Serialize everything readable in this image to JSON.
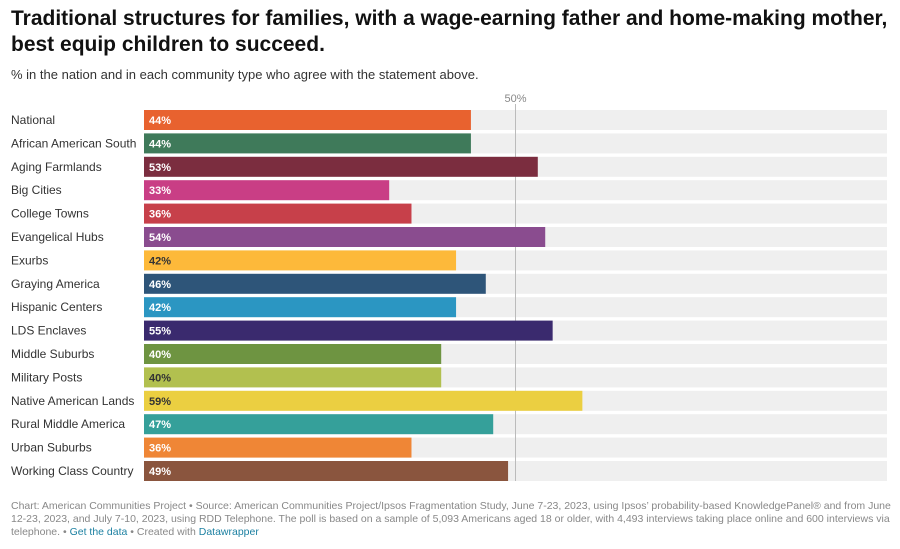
{
  "title": "Traditional structures for families, with a wage-earning father and home-making mother, best equip children to succeed.",
  "subtitle": "% in the nation and in each community type who agree with the statement above.",
  "chart_data": {
    "type": "bar",
    "orientation": "horizontal",
    "xlim": [
      0,
      100
    ],
    "value_suffix": "%",
    "reference_line": {
      "value": 50,
      "label": "50%"
    },
    "categories": [
      "National",
      "African American South",
      "Aging Farmlands",
      "Big Cities",
      "College Towns",
      "Evangelical Hubs",
      "Exurbs",
      "Graying America",
      "Hispanic Centers",
      "LDS Enclaves",
      "Middle Suburbs",
      "Military Posts",
      "Native American Lands",
      "Rural Middle America",
      "Urban Suburbs",
      "Working Class Country"
    ],
    "values": [
      44,
      44,
      53,
      33,
      36,
      54,
      42,
      46,
      42,
      55,
      40,
      40,
      59,
      47,
      36,
      49
    ],
    "colors": [
      "#e8622f",
      "#3f7a5a",
      "#7b2d3f",
      "#c93e85",
      "#c7404a",
      "#8a4c8f",
      "#fdb93a",
      "#2e5579",
      "#2b96c2",
      "#3a2a6e",
      "#6e9441",
      "#b2c04f",
      "#ebcf41",
      "#35a09a",
      "#ef8636",
      "#8a553e"
    ],
    "label_colors": [
      "#ffffff",
      "#ffffff",
      "#ffffff",
      "#ffffff",
      "#ffffff",
      "#ffffff",
      "#333333",
      "#ffffff",
      "#ffffff",
      "#ffffff",
      "#ffffff",
      "#333333",
      "#333333",
      "#ffffff",
      "#ffffff",
      "#ffffff"
    ],
    "background_color": "#efefef"
  },
  "footer": {
    "text": "Chart: American Communities Project • Source: American Communities Project/Ipsos Fragmentation Study, June 7-23, 2023, using Ipsos’ probability-based KnowledgePanel® and from June 12-23, 2023, and July 7-10, 2023, using RDD Telephone. The poll is based on a sample of 5,093 Americans aged 18 or older, with 4,493 interviews taking place online and 600 interviews via telephone.",
    "sep1": " • ",
    "get_data": "Get the data",
    "sep2": " • Created with ",
    "datawrapper": "Datawrapper"
  }
}
